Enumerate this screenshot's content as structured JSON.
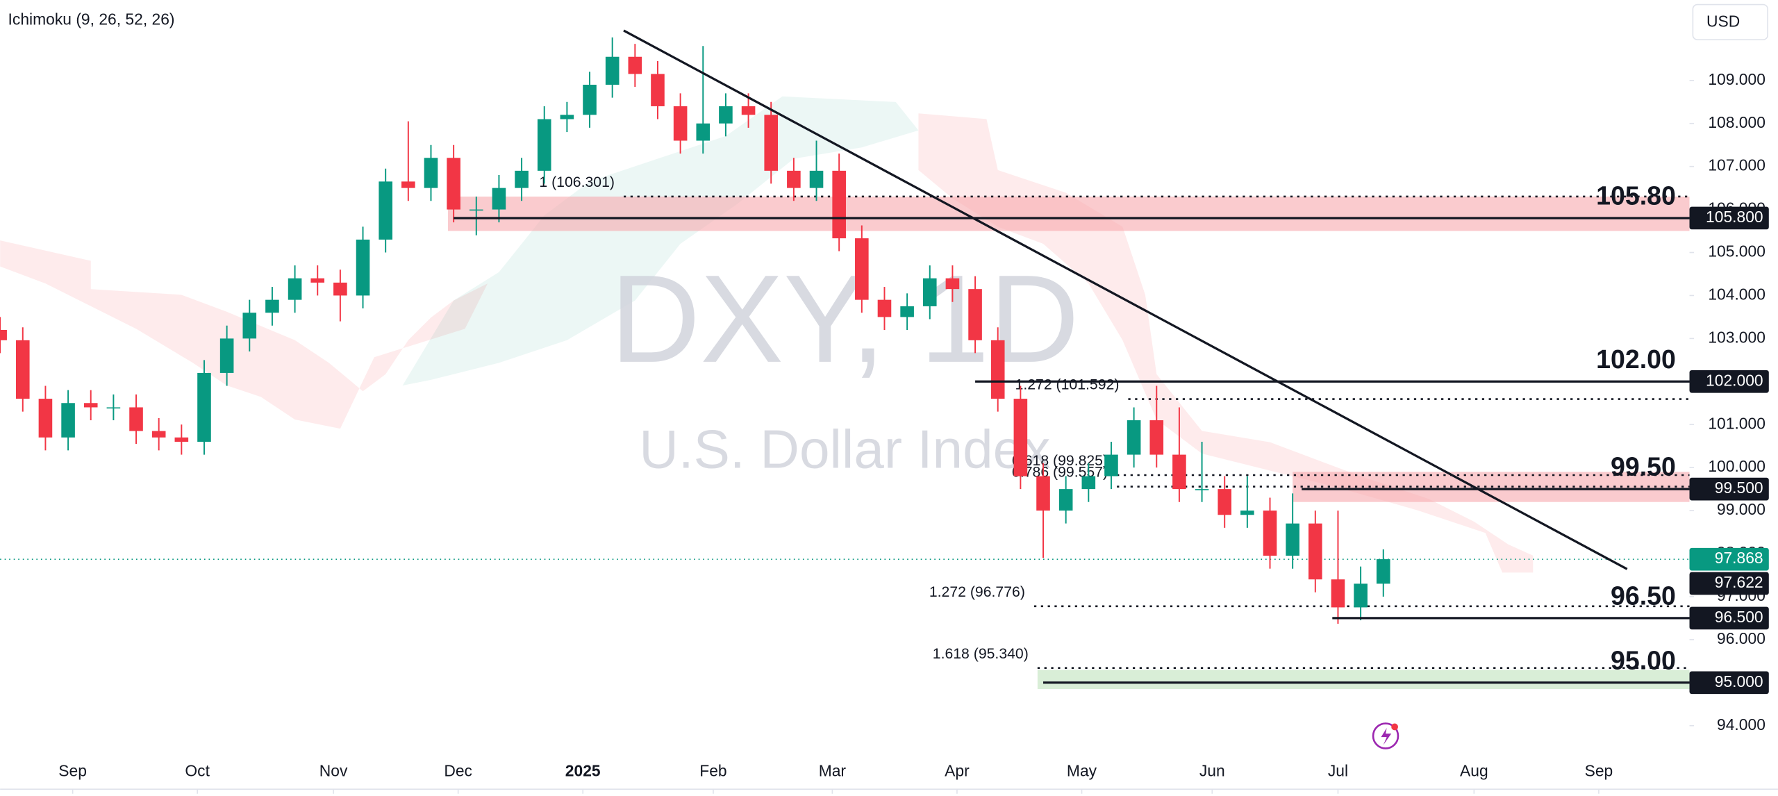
{
  "chart_data": {
    "type": "candlestick",
    "indicator": "Ichimoku (9, 26, 52, 26)",
    "currency": "USD",
    "watermark_symbol": "DXY, 1D",
    "watermark_name": "U.S. Dollar Index",
    "up_color": "#089981",
    "down_color": "#f23645",
    "xlim": [
      0,
      298
    ],
    "ylim": [
      93.34,
      110.87
    ],
    "xticks": [
      {
        "value": 12.8,
        "label": "Sep"
      },
      {
        "value": 34.8,
        "label": "Oct"
      },
      {
        "value": 58.8,
        "label": "Nov"
      },
      {
        "value": 80.8,
        "label": "Dec"
      },
      {
        "value": 102.8,
        "label": "2025",
        "bold": true
      },
      {
        "value": 125.8,
        "label": "Feb"
      },
      {
        "value": 146.8,
        "label": "Mar"
      },
      {
        "value": 168.8,
        "label": "Apr"
      },
      {
        "value": 190.8,
        "label": "May"
      },
      {
        "value": 213.8,
        "label": "Jun"
      },
      {
        "value": 236,
        "label": "Jul"
      },
      {
        "value": 260,
        "label": "Aug"
      },
      {
        "value": 282,
        "label": "Sep"
      }
    ],
    "yticks": [
      {
        "value": 94,
        "label": "94.000"
      },
      {
        "value": 95,
        "label": "95.000"
      },
      {
        "value": 96,
        "label": "96.000"
      },
      {
        "value": 97,
        "label": "97.000"
      },
      {
        "value": 98,
        "label": "98.000"
      },
      {
        "value": 99,
        "label": "99.000"
      },
      {
        "value": 100,
        "label": "100.000"
      },
      {
        "value": 101,
        "label": "101.000"
      },
      {
        "value": 102,
        "label": "102.000"
      },
      {
        "value": 103,
        "label": "103.000"
      },
      {
        "value": 104,
        "label": "104.000"
      },
      {
        "value": 105,
        "label": "105.000"
      },
      {
        "value": 106,
        "label": "106.000"
      },
      {
        "value": 107,
        "label": "107.000"
      },
      {
        "value": 108,
        "label": "108.000"
      },
      {
        "value": 109,
        "label": "109.000"
      }
    ],
    "x": [
      0,
      4,
      8,
      12,
      16,
      20,
      24,
      28,
      32,
      36,
      40,
      44,
      48,
      52,
      56,
      60,
      64,
      68,
      72,
      76,
      80,
      84,
      88,
      92,
      96,
      100,
      104,
      108,
      112,
      116,
      120,
      124,
      128,
      132,
      136,
      140,
      144,
      148,
      152,
      156,
      160,
      164,
      168,
      172,
      176,
      180,
      184,
      188,
      192,
      196,
      200,
      204,
      208,
      212,
      216,
      220,
      224,
      228,
      232,
      236,
      240,
      244
    ],
    "open": [
      103.2,
      102.96,
      101.6,
      100.7,
      101.5,
      101.4,
      101.4,
      100.85,
      100.7,
      100.6,
      102.2,
      103.0,
      103.6,
      103.9,
      104.4,
      104.3,
      104.0,
      105.3,
      106.65,
      106.5,
      107.2,
      106.0,
      106.0,
      106.5,
      106.9,
      108.1,
      108.2,
      108.9,
      109.55,
      109.15,
      108.4,
      107.6,
      108.0,
      108.4,
      108.2,
      106.9,
      106.5,
      106.9,
      105.33,
      103.9,
      103.5,
      103.75,
      104.4,
      104.15,
      102.96,
      101.6,
      99.8,
      99.0,
      99.5,
      99.8,
      100.3,
      101.1,
      100.3,
      99.5,
      99.5,
      98.9,
      99.0,
      97.95,
      98.7,
      97.4,
      96.75,
      97.3
    ],
    "high": [
      103.5,
      103.26,
      101.9,
      101.8,
      101.8,
      101.7,
      101.7,
      101.15,
      101.0,
      102.5,
      103.3,
      103.9,
      104.2,
      104.7,
      104.7,
      104.6,
      105.6,
      106.95,
      108.05,
      107.5,
      107.5,
      106.3,
      106.8,
      107.2,
      108.4,
      108.5,
      109.2,
      110.0,
      109.85,
      109.45,
      108.7,
      109.8,
      108.7,
      108.7,
      108.5,
      107.2,
      107.6,
      107.3,
      105.63,
      104.2,
      104.05,
      104.7,
      104.7,
      104.45,
      103.26,
      101.9,
      100.1,
      99.8,
      100.1,
      100.6,
      101.4,
      101.9,
      101.4,
      100.6,
      99.8,
      99.8,
      99.3,
      99.4,
      99.0,
      99.0,
      97.7,
      98.1
    ],
    "low": [
      102.66,
      101.3,
      100.4,
      100.4,
      101.1,
      101.1,
      100.55,
      100.4,
      100.3,
      100.3,
      101.9,
      102.7,
      103.3,
      103.6,
      104.0,
      103.4,
      103.7,
      105.0,
      106.2,
      106.2,
      105.7,
      105.4,
      105.7,
      106.2,
      106.6,
      107.8,
      107.9,
      108.6,
      108.85,
      108.1,
      107.3,
      107.3,
      107.7,
      107.9,
      106.6,
      106.2,
      106.2,
      105.03,
      103.6,
      103.2,
      103.2,
      103.45,
      103.85,
      102.66,
      101.3,
      99.5,
      97.9,
      98.7,
      99.2,
      99.5,
      100.0,
      100.0,
      99.2,
      99.2,
      98.6,
      98.6,
      97.65,
      97.65,
      97.1,
      96.37,
      96.45,
      97.0
    ],
    "close": [
      102.96,
      101.6,
      100.7,
      101.5,
      101.4,
      101.4,
      100.85,
      100.7,
      100.6,
      102.2,
      103.0,
      103.6,
      103.9,
      104.4,
      104.3,
      104.0,
      105.3,
      106.65,
      106.5,
      107.2,
      106.0,
      106.0,
      106.5,
      106.9,
      108.1,
      108.2,
      108.9,
      109.55,
      109.15,
      108.4,
      107.6,
      108.0,
      108.4,
      108.2,
      106.9,
      106.5,
      106.9,
      105.33,
      103.9,
      103.5,
      103.75,
      104.4,
      104.15,
      102.96,
      101.6,
      99.8,
      99.0,
      99.5,
      99.8,
      100.3,
      101.1,
      100.3,
      99.5,
      99.5,
      98.9,
      99.0,
      97.95,
      98.7,
      97.4,
      96.75,
      97.3,
      97.87
    ],
    "zones": [
      {
        "from": 105.5,
        "to": 106.3,
        "start": 79,
        "color": "#f7a8ad"
      },
      {
        "from": 99.2,
        "to": 99.9,
        "start": 228,
        "color": "#f7a8ad"
      },
      {
        "from": 94.85,
        "to": 95.3,
        "start": 183,
        "color": "#bfe3bd"
      }
    ],
    "levels": [
      {
        "value": 105.8,
        "label": "105.80",
        "tag": "105.800",
        "start": 80
      },
      {
        "value": 102,
        "label": "102.00",
        "tag": "102.000",
        "start": 172
      },
      {
        "value": 99.5,
        "label": "99.50",
        "tag": "99.500",
        "start": 229.6
      },
      {
        "value": 96.5,
        "label": "96.50",
        "tag": "96.500",
        "start": 235
      },
      {
        "value": 95,
        "label": "95.00",
        "tag": "95.000",
        "start": 184
      }
    ],
    "fib_levels": [
      {
        "value": 106.301,
        "label": "1 (106.301)",
        "start": 110
      },
      {
        "value": 101.592,
        "label": "1.272 (101.592)",
        "start": 199
      },
      {
        "value": 99.825,
        "label": "0.618 (99.825)",
        "start": 197
      },
      {
        "value": 99.557,
        "label": "0.786 (99.557)",
        "start": 197
      },
      {
        "value": 96.776,
        "label": "1.272 (96.776)",
        "start": 182.4
      },
      {
        "value": 95.34,
        "label": "1.618 (95.340)",
        "start": 183
      }
    ],
    "trendline": {
      "x": [
        110,
        287
      ],
      "y": [
        110.16,
        97.64
      ]
    },
    "last_price": {
      "value": 97.868,
      "label": "97.868",
      "color": "#089981"
    },
    "price_tags": [
      {
        "value": 97.622,
        "label": "97.622"
      }
    ]
  }
}
